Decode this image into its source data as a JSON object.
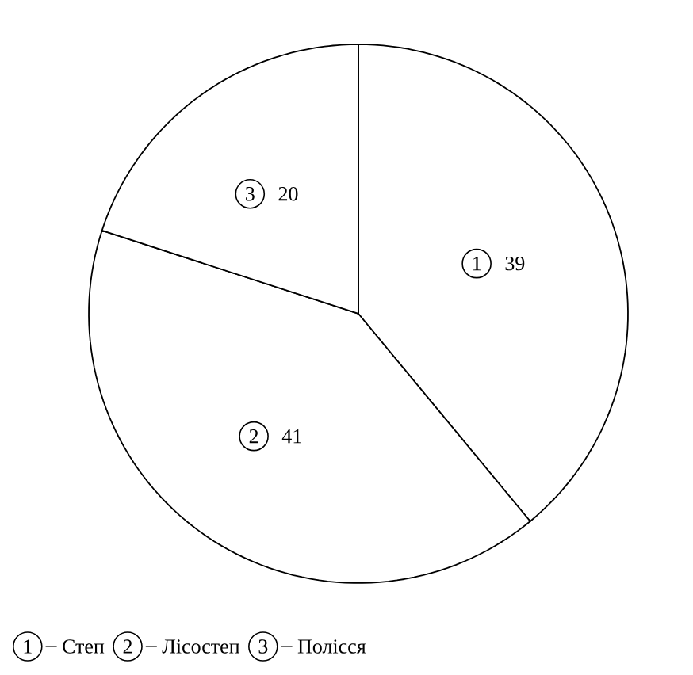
{
  "chart_data": {
    "type": "pie",
    "categories": [
      "Степ",
      "Лісостеп",
      "Полісся"
    ],
    "values": [
      39,
      41,
      20
    ],
    "colors": [
      "#ffffff",
      "#ffffff",
      "#ffffff"
    ],
    "data_labels": true,
    "legend": "bottom",
    "annotations": [
      "1",
      "2",
      "3"
    ]
  }
}
